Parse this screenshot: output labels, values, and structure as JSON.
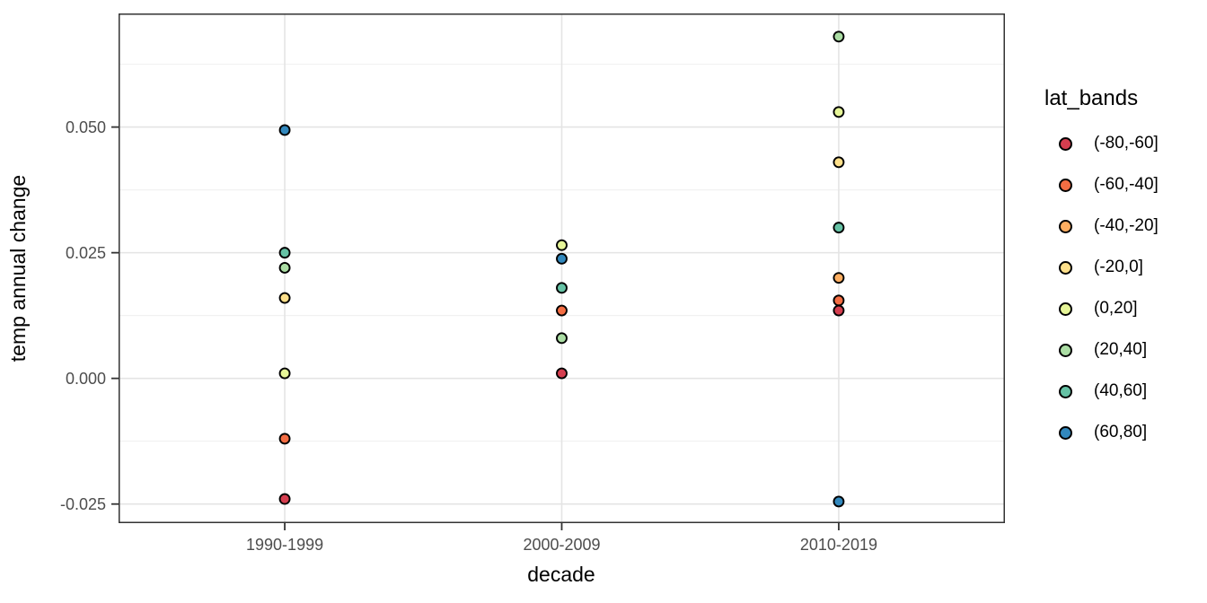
{
  "chart_data": {
    "type": "scatter",
    "xlabel": "decade",
    "ylabel": "temp annual change",
    "legend_title": "lat_bands",
    "legend_position": "right",
    "grid": true,
    "categories": [
      "1990-1999",
      "2000-2009",
      "2010-2019"
    ],
    "y_ticks": [
      {
        "value": 0.05,
        "label": "0.050"
      },
      {
        "value": 0.025,
        "label": "0.025"
      },
      {
        "value": 0.0,
        "label": "0.000"
      },
      {
        "value": -0.025,
        "label": "-0.025"
      }
    ],
    "y_minor_ticks": [
      0.0625,
      0.0375,
      0.0125,
      -0.0125
    ],
    "ylim": [
      -0.0288,
      0.0726
    ],
    "series": [
      {
        "name": "(-80,-60]",
        "color": "#D53E4F",
        "values": [
          -0.024,
          0.001,
          0.0135
        ]
      },
      {
        "name": "(-60,-40]",
        "color": "#F46D43",
        "values": [
          -0.012,
          0.0135,
          0.0155
        ]
      },
      {
        "name": "(-40,-20]",
        "color": "#FDAE61",
        "values": [
          null,
          null,
          0.02
        ]
      },
      {
        "name": "(-20,0]",
        "color": "#FEE08B",
        "values": [
          0.016,
          null,
          0.043
        ]
      },
      {
        "name": "(0,20]",
        "color": "#E6F598",
        "values": [
          0.001,
          0.0265,
          0.053
        ]
      },
      {
        "name": "(20,40]",
        "color": "#ABDDA4",
        "values": [
          0.022,
          0.008,
          0.068
        ]
      },
      {
        "name": "(40,60]",
        "color": "#66C2A5",
        "values": [
          0.025,
          0.018,
          0.03
        ]
      },
      {
        "name": "(60,80]",
        "color": "#3288BD",
        "values": [
          0.0494,
          0.0238,
          -0.0245
        ]
      }
    ],
    "point_style": {
      "radius": 5.5,
      "stroke": "#000000",
      "stroke_width": 1.9
    },
    "colors": {
      "tick_label": "#4d4d4d",
      "axis_title": "#000000",
      "grid_major": "#E4E4E4",
      "grid_minor": "#F1F1F1",
      "panel_border": "#333333",
      "tick_mark": "#333333",
      "panel_background": "#ffffff"
    }
  }
}
